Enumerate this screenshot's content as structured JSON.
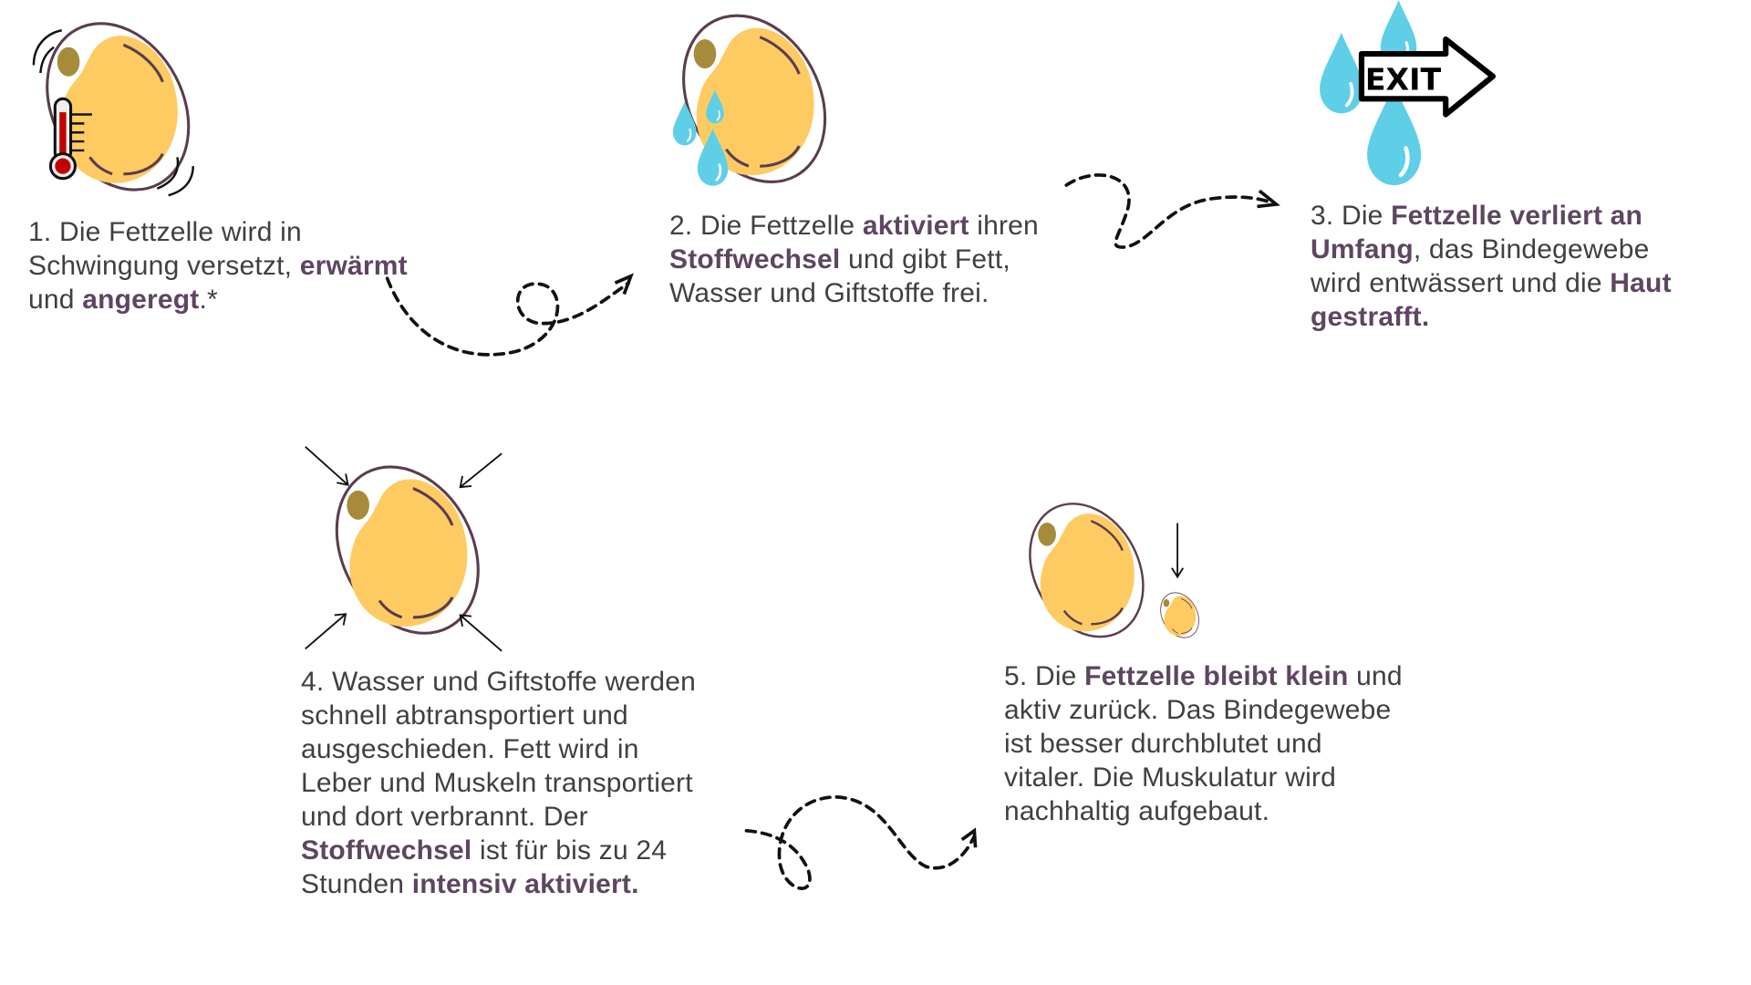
{
  "colors": {
    "text": "#404040",
    "highlight": "#5e4561",
    "fat": "#fecb63",
    "nucleus": "#a68c3a",
    "membrane": "#5a3d4f",
    "water": "#5fcfe8"
  },
  "icons": [
    "vibrating-fat-cell-thermometer-icon",
    "fat-cell-water-drops-icon",
    "water-drops-exit-icon",
    "compressed-fat-cell-icon",
    "shrinking-fat-cell-icon"
  ],
  "exit_label": "EXIT",
  "steps": [
    {
      "lines": [
        [
          {
            "t": "1. Die Fettzelle wird in",
            "b": false
          }
        ],
        [
          {
            "t": "Schwingung versetzt, ",
            "b": false
          },
          {
            "t": "erwärmt",
            "b": true
          }
        ],
        [
          {
            "t": "und ",
            "b": false
          },
          {
            "t": "angeregt",
            "b": true
          },
          {
            "t": ".*",
            "b": false
          }
        ]
      ]
    },
    {
      "lines": [
        [
          {
            "t": "2. Die Fettzelle ",
            "b": false
          },
          {
            "t": "aktiviert",
            "b": true
          },
          {
            "t": " ihren",
            "b": false
          }
        ],
        [
          {
            "t": "Stoffwechsel",
            "b": true
          },
          {
            "t": " und gibt Fett,",
            "b": false
          }
        ],
        [
          {
            "t": "Wasser und Giftstoffe frei.",
            "b": false
          }
        ]
      ]
    },
    {
      "lines": [
        [
          {
            "t": "3. Die ",
            "b": false
          },
          {
            "t": "Fettzelle verliert an",
            "b": true
          }
        ],
        [
          {
            "t": "Umfang",
            "b": true
          },
          {
            "t": ", das Bindegewebe",
            "b": false
          }
        ],
        [
          {
            "t": "wird entwässert und die ",
            "b": false
          },
          {
            "t": "Haut",
            "b": true
          }
        ],
        [
          {
            "t": "gestrafft.",
            "b": true
          }
        ]
      ]
    },
    {
      "lines": [
        [
          {
            "t": "4. Wasser und Giftstoffe werden",
            "b": false
          }
        ],
        [
          {
            "t": "schnell abtransportiert und",
            "b": false
          }
        ],
        [
          {
            "t": "ausgeschieden. Fett wird in",
            "b": false
          }
        ],
        [
          {
            "t": "Leber und Muskeln transportiert",
            "b": false
          }
        ],
        [
          {
            "t": "und dort verbrannt. Der",
            "b": false
          }
        ],
        [
          {
            "t": "Stoffwechsel",
            "b": true
          },
          {
            "t": " ist für bis zu 24",
            "b": false
          }
        ],
        [
          {
            "t": "Stunden ",
            "b": false
          },
          {
            "t": "intensiv aktiviert.",
            "b": true
          }
        ]
      ]
    },
    {
      "lines": [
        [
          {
            "t": "5. Die ",
            "b": false
          },
          {
            "t": "Fettzelle bleibt klein",
            "b": true
          },
          {
            "t": " und",
            "b": false
          }
        ],
        [
          {
            "t": "aktiv zurück. Das Bindegewebe",
            "b": false
          }
        ],
        [
          {
            "t": "ist besser durchblutet und",
            "b": false
          }
        ],
        [
          {
            "t": "vitaler. Die Muskulatur wird",
            "b": false
          }
        ],
        [
          {
            "t": "nachhaltig aufgebaut.",
            "b": false
          }
        ]
      ]
    }
  ]
}
